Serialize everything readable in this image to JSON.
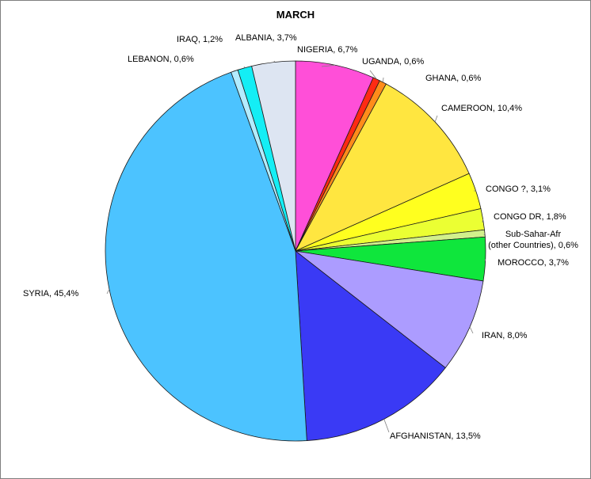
{
  "chart_data": {
    "type": "pie",
    "title": "MARCH",
    "start_angle_deg": 0,
    "direction": "clockwise",
    "slices": [
      {
        "label": "NIGERIA, 6,7%",
        "value": 6.7,
        "color": "#ff4fd8"
      },
      {
        "label": "UGANDA, 0,6%",
        "value": 0.6,
        "color": "#ff2a12"
      },
      {
        "label": "GHANA, 0,6%",
        "value": 0.6,
        "color": "#ff8c1a"
      },
      {
        "label": "CAMEROON, 10,4%",
        "value": 10.4,
        "color": "#ffe640"
      },
      {
        "label": "CONGO ?, 3,1%",
        "value": 3.1,
        "color": "#ffff1f"
      },
      {
        "label": "CONGO DR, 1,8%",
        "value": 1.8,
        "color": "#ebff33"
      },
      {
        "label": [
          "Sub-Sahar-Afr",
          "(other Countries), 0,6%"
        ],
        "value": 0.6,
        "color": "#d2f08c"
      },
      {
        "label": "MOROCCO, 3,7%",
        "value": 3.7,
        "color": "#0fe63c"
      },
      {
        "label": "IRAN, 8,0%",
        "value": 8.0,
        "color": "#ac9cff"
      },
      {
        "label": "AFGHANISTAN, 13,5%",
        "value": 13.5,
        "color": "#3a3af5"
      },
      {
        "label": "SYRIA, 45,4%",
        "value": 45.4,
        "color": "#4cc3ff"
      },
      {
        "label": "LEBANON, 0,6%",
        "value": 0.6,
        "color": "#b3ecff"
      },
      {
        "label": "IRAQ, 1,2%",
        "value": 1.2,
        "color": "#14eef5"
      },
      {
        "label": "ALBANIA, 3,7%",
        "value": 3.7,
        "color": "#dde5f2"
      }
    ]
  }
}
